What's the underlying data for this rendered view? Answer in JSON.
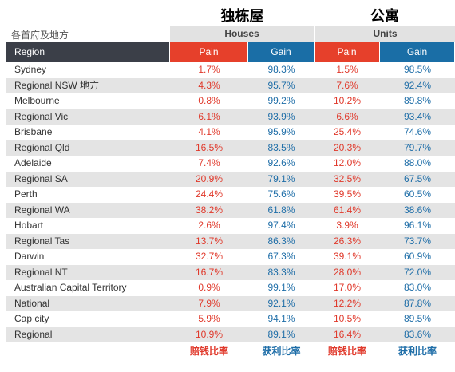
{
  "titles": {
    "houses_cn": "独栋屋",
    "units_cn": "公寓",
    "region_cn": "各首府及地方"
  },
  "groups": {
    "houses": "Houses",
    "units": "Units"
  },
  "header": [
    "Region",
    "Pain",
    "Gain",
    "Pain",
    "Gain"
  ],
  "table": {
    "rows": [
      [
        "Sydney",
        "1.7%",
        "98.3%",
        "1.5%",
        "98.5%"
      ],
      [
        "Regional NSW 地方",
        "4.3%",
        "95.7%",
        "7.6%",
        "92.4%"
      ],
      [
        "Melbourne",
        "0.8%",
        "99.2%",
        "10.2%",
        "89.8%"
      ],
      [
        "Regional Vic",
        "6.1%",
        "93.9%",
        "6.6%",
        "93.4%"
      ],
      [
        "Brisbane",
        "4.1%",
        "95.9%",
        "25.4%",
        "74.6%"
      ],
      [
        "Regional Qld",
        "16.5%",
        "83.5%",
        "20.3%",
        "79.7%"
      ],
      [
        "Adelaide",
        "7.4%",
        "92.6%",
        "12.0%",
        "88.0%"
      ],
      [
        "Regional SA",
        "20.9%",
        "79.1%",
        "32.5%",
        "67.5%"
      ],
      [
        "Perth",
        "24.4%",
        "75.6%",
        "39.5%",
        "60.5%"
      ],
      [
        "Regional WA",
        "38.2%",
        "61.8%",
        "61.4%",
        "38.6%"
      ],
      [
        "Hobart",
        "2.6%",
        "97.4%",
        "3.9%",
        "96.1%"
      ],
      [
        "Regional Tas",
        "13.7%",
        "86.3%",
        "26.3%",
        "73.7%"
      ],
      [
        "Darwin",
        "32.7%",
        "67.3%",
        "39.1%",
        "60.9%"
      ],
      [
        "Regional NT",
        "16.7%",
        "83.3%",
        "28.0%",
        "72.0%"
      ],
      [
        "Australian Capital Territory",
        "0.9%",
        "99.1%",
        "17.0%",
        "83.0%"
      ],
      [
        "National",
        "7.9%",
        "92.1%",
        "12.2%",
        "87.8%"
      ],
      [
        "Cap city",
        "5.9%",
        "94.1%",
        "10.5%",
        "89.5%"
      ],
      [
        "Regional",
        "10.9%",
        "89.1%",
        "16.4%",
        "83.6%"
      ]
    ]
  },
  "footer": [
    "赔钱比率",
    "获利比率",
    "赔钱比率",
    "获利比率"
  ]
}
